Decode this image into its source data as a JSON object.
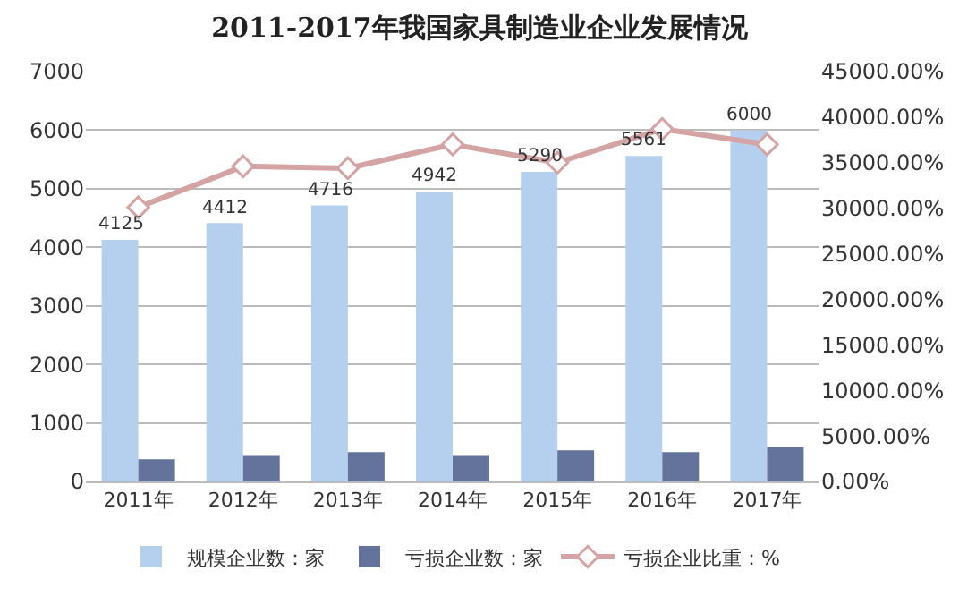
{
  "chart_data": {
    "type": "bar",
    "title": "2011-2017年我国家具制造业企业发展情况",
    "categories": [
      "2011年",
      "2012年",
      "2013年",
      "2014年",
      "2015年",
      "2016年",
      "2017年"
    ],
    "series": [
      {
        "name": "规模企业数：家",
        "color": "#b4d0ee",
        "values": [
          4125,
          4412,
          4716,
          4942,
          5290,
          5561,
          6000
        ],
        "value_labels": [
          "4125",
          "4412",
          "4716",
          "4942",
          "5290",
          "5561",
          "6000"
        ]
      },
      {
        "name": "亏损企业数：家",
        "color": "#64739c",
        "values": [
          380,
          450,
          500,
          450,
          530,
          500,
          590
        ]
      },
      {
        "name": "亏损企业比重：%",
        "type": "line",
        "axis": "y2",
        "color": "#d4a4a4",
        "marker": "diamond",
        "values": [
          30100,
          34600,
          34400,
          37000,
          35000,
          38700,
          37000
        ]
      }
    ],
    "ylim": [
      0,
      7000
    ],
    "yticks": [
      0,
      1000,
      2000,
      3000,
      4000,
      5000,
      6000,
      7000
    ],
    "y2lim": [
      0,
      45000
    ],
    "y2ticks": [
      {
        "value": 0,
        "label": "0.00%"
      },
      {
        "value": 5000,
        "label": "5000.00%"
      },
      {
        "value": 10000,
        "label": "10000.00%"
      },
      {
        "value": 15000,
        "label": "15000.00%"
      },
      {
        "value": 20000,
        "label": "20000.00%"
      },
      {
        "value": 25000,
        "label": "25000.00%"
      },
      {
        "value": 30000,
        "label": "30000.00%"
      },
      {
        "value": 35000,
        "label": "35000.00%"
      },
      {
        "value": 40000,
        "label": "40000.00%"
      },
      {
        "value": 45000,
        "label": "45000.00%"
      }
    ],
    "grid": "y",
    "legend": "bottom"
  }
}
